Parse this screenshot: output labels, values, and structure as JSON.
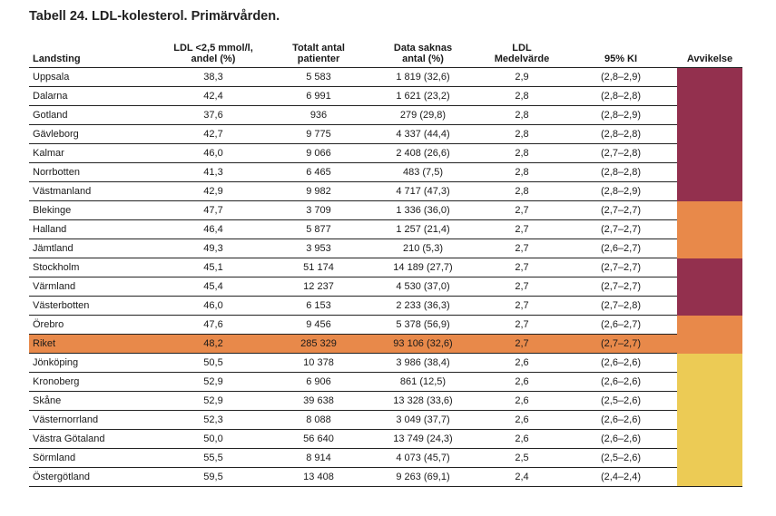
{
  "title": "Tabell 24. LDL-kolesterol. Primärvården.",
  "columns": [
    "Landsting",
    "LDL <2,5 mmol/l, andel (%)",
    "Totalt antal patienter",
    "Data saknas antal (%)",
    "LDL Medelvärde",
    "95% KI",
    "Avvikelse"
  ],
  "column_lines": [
    [
      "Landsting"
    ],
    [
      "LDL <2,5 mmol/l,",
      "andel (%)"
    ],
    [
      "Totalt antal",
      "patienter"
    ],
    [
      "Data saknas",
      "antal (%)"
    ],
    [
      "LDL",
      "Medelvärde"
    ],
    [
      "95% KI"
    ],
    [
      "Avvikelse"
    ]
  ],
  "colors": {
    "high": "#93304e",
    "mid": "#e8894a",
    "low": "#eccb55",
    "riket_row": "#e8894a"
  },
  "rows": [
    {
      "name": "Uppsala",
      "andel": "38,3",
      "totalt": "5 583",
      "saknas": "1 819 (32,6)",
      "medel": "2,9",
      "ki": "(2,8–2,9)",
      "avvikelse": "high"
    },
    {
      "name": "Dalarna",
      "andel": "42,4",
      "totalt": "6 991",
      "saknas": "1 621 (23,2)",
      "medel": "2,8",
      "ki": "(2,8–2,8)",
      "avvikelse": "high"
    },
    {
      "name": "Gotland",
      "andel": "37,6",
      "totalt": "936",
      "saknas": "279 (29,8)",
      "medel": "2,8",
      "ki": "(2,8–2,9)",
      "avvikelse": "high"
    },
    {
      "name": "Gävleborg",
      "andel": "42,7",
      "totalt": "9 775",
      "saknas": "4 337 (44,4)",
      "medel": "2,8",
      "ki": "(2,8–2,8)",
      "avvikelse": "high"
    },
    {
      "name": "Kalmar",
      "andel": "46,0",
      "totalt": "9 066",
      "saknas": "2 408 (26,6)",
      "medel": "2,8",
      "ki": "(2,7–2,8)",
      "avvikelse": "high"
    },
    {
      "name": "Norrbotten",
      "andel": "41,3",
      "totalt": "6 465",
      "saknas": "483 (7,5)",
      "medel": "2,8",
      "ki": "(2,8–2,8)",
      "avvikelse": "high"
    },
    {
      "name": "Västmanland",
      "andel": "42,9",
      "totalt": "9 982",
      "saknas": "4 717 (47,3)",
      "medel": "2,8",
      "ki": "(2,8–2,9)",
      "avvikelse": "high"
    },
    {
      "name": "Blekinge",
      "andel": "47,7",
      "totalt": "3 709",
      "saknas": "1 336 (36,0)",
      "medel": "2,7",
      "ki": "(2,7–2,7)",
      "avvikelse": "mid"
    },
    {
      "name": "Halland",
      "andel": "46,4",
      "totalt": "5 877",
      "saknas": "1 257 (21,4)",
      "medel": "2,7",
      "ki": "(2,7–2,7)",
      "avvikelse": "mid"
    },
    {
      "name": "Jämtland",
      "andel": "49,3",
      "totalt": "3 953",
      "saknas": "210 (5,3)",
      "medel": "2,7",
      "ki": "(2,6–2,7)",
      "avvikelse": "mid"
    },
    {
      "name": "Stockholm",
      "andel": "45,1",
      "totalt": "51 174",
      "saknas": "14 189 (27,7)",
      "medel": "2,7",
      "ki": "(2,7–2,7)",
      "avvikelse": "high"
    },
    {
      "name": "Värmland",
      "andel": "45,4",
      "totalt": "12 237",
      "saknas": "4 530 (37,0)",
      "medel": "2,7",
      "ki": "(2,7–2,7)",
      "avvikelse": "high"
    },
    {
      "name": "Västerbotten",
      "andel": "46,0",
      "totalt": "6 153",
      "saknas": "2 233 (36,3)",
      "medel": "2,7",
      "ki": "(2,7–2,8)",
      "avvikelse": "high"
    },
    {
      "name": "Örebro",
      "andel": "47,6",
      "totalt": "9 456",
      "saknas": "5 378 (56,9)",
      "medel": "2,7",
      "ki": "(2,6–2,7)",
      "avvikelse": "mid"
    },
    {
      "name": "Riket",
      "andel": "48,2",
      "totalt": "285 329",
      "saknas": "93 106 (32,6)",
      "medel": "2,7",
      "ki": "(2,7–2,7)",
      "avvikelse": "mid",
      "riket": true
    },
    {
      "name": "Jönköping",
      "andel": "50,5",
      "totalt": "10 378",
      "saknas": "3 986 (38,4)",
      "medel": "2,6",
      "ki": "(2,6–2,6)",
      "avvikelse": "low"
    },
    {
      "name": "Kronoberg",
      "andel": "52,9",
      "totalt": "6 906",
      "saknas": "861 (12,5)",
      "medel": "2,6",
      "ki": "(2,6–2,6)",
      "avvikelse": "low"
    },
    {
      "name": "Skåne",
      "andel": "52,9",
      "totalt": "39 638",
      "saknas": "13 328 (33,6)",
      "medel": "2,6",
      "ki": "(2,5–2,6)",
      "avvikelse": "low"
    },
    {
      "name": "Västernorrland",
      "andel": "52,3",
      "totalt": "8 088",
      "saknas": "3 049 (37,7)",
      "medel": "2,6",
      "ki": "(2,6–2,6)",
      "avvikelse": "low"
    },
    {
      "name": "Västra Götaland",
      "andel": "50,0",
      "totalt": "56 640",
      "saknas": "13 749 (24,3)",
      "medel": "2,6",
      "ki": "(2,6–2,6)",
      "avvikelse": "low"
    },
    {
      "name": "Sörmland",
      "andel": "55,5",
      "totalt": "8 914",
      "saknas": "4 073 (45,7)",
      "medel": "2,5",
      "ki": "(2,5–2,6)",
      "avvikelse": "low"
    },
    {
      "name": "Östergötland",
      "andel": "59,5",
      "totalt": "13 408",
      "saknas": "9 263 (69,1)",
      "medel": "2,4",
      "ki": "(2,4–2,4)",
      "avvikelse": "low"
    }
  ]
}
